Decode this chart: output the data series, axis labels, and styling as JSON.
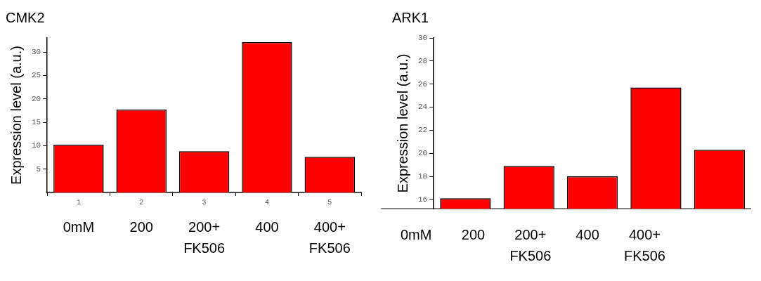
{
  "chart_data": [
    {
      "type": "bar",
      "title": "CMK2",
      "ylabel": "Expression level (a.u.)",
      "x": [
        1,
        2,
        3,
        4,
        5
      ],
      "values": [
        10.2,
        17.7,
        8.8,
        32.1,
        7.6
      ],
      "color": "#ff0000",
      "xlim": [
        0.5,
        5.5
      ],
      "xticks": [
        1,
        2,
        3,
        4,
        5
      ],
      "ylim": [
        0,
        33
      ],
      "yticks": [
        5,
        10,
        15,
        20,
        25,
        30
      ],
      "annotations": [
        "0mM",
        "200",
        "200+ FK506",
        "400",
        "400+ FK506"
      ]
    },
    {
      "type": "bar",
      "title": "ARK1",
      "ylabel": "Expression level (a.u.)",
      "categories": [
        null,
        null,
        null,
        null,
        null
      ],
      "values": [
        16.1,
        18.9,
        18.0,
        25.7,
        20.3
      ],
      "color": "#ff0000",
      "ylim": [
        15.2,
        30
      ],
      "yticks": [
        16,
        18,
        20,
        22,
        24,
        26,
        28,
        30
      ],
      "tick_labels": "y",
      "ref_lines": [
        {
          "axis": "y",
          "value": 15.2,
          "color": "#000000"
        }
      ],
      "annotations": [
        "0mM",
        "200",
        "200+ FK506",
        "400",
        "400+ FK506"
      ]
    }
  ]
}
